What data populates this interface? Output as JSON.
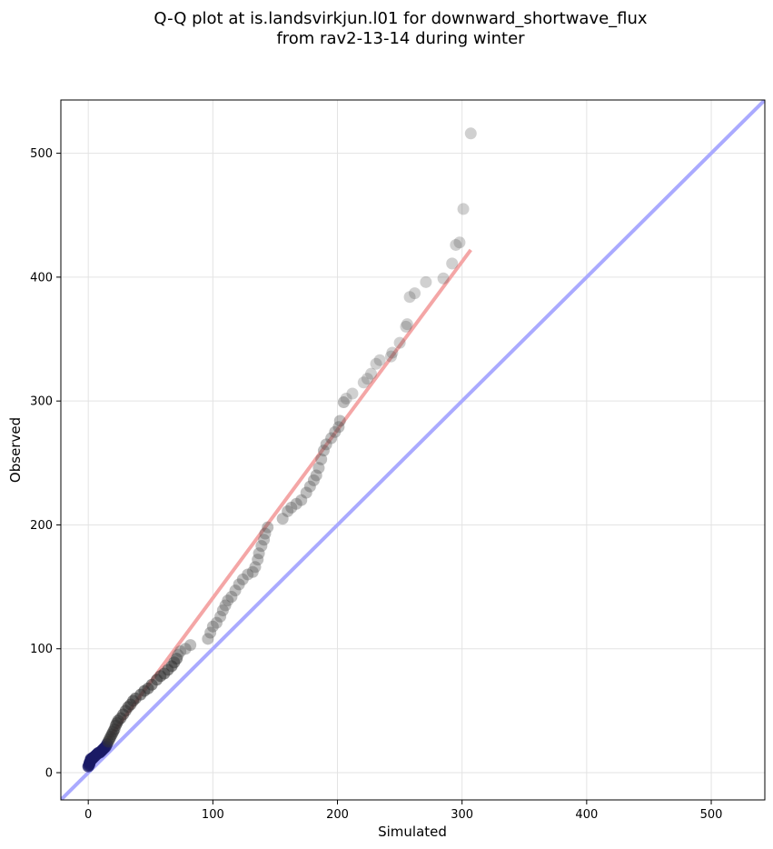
{
  "chart_data": {
    "type": "scatter",
    "title_lines": [
      "Q-Q plot at is.landsvirkjun.l01 for downward_shortwave_flux",
      "from rav2-13-14 during winter"
    ],
    "xlabel": "Simulated",
    "ylabel": "Observed",
    "xlim": [
      -22,
      543
    ],
    "ylim": [
      -22,
      543
    ],
    "xticks": [
      0,
      100,
      200,
      300,
      400,
      500
    ],
    "yticks": [
      0,
      100,
      200,
      300,
      400,
      500
    ],
    "grid": true,
    "reference_line": {
      "name": "1:1",
      "color": "#aaaaff",
      "from": [
        -22,
        -22
      ],
      "to": [
        543,
        543
      ]
    },
    "fit_line": {
      "color": "#f4a6a6",
      "from": [
        2,
        8
      ],
      "to": [
        307,
        422
      ]
    },
    "point_color": "#555555",
    "points": [
      [
        0,
        5
      ],
      [
        0.5,
        6
      ],
      [
        1,
        7
      ],
      [
        1,
        8
      ],
      [
        1.5,
        9
      ],
      [
        2,
        10
      ],
      [
        2,
        11
      ],
      [
        3,
        11
      ],
      [
        3.5,
        12
      ],
      [
        4,
        12
      ],
      [
        5,
        13
      ],
      [
        6,
        14
      ],
      [
        7,
        15
      ],
      [
        8,
        16
      ],
      [
        9,
        16
      ],
      [
        10,
        17
      ],
      [
        11,
        18
      ],
      [
        12,
        19
      ],
      [
        13,
        20
      ],
      [
        14,
        21
      ],
      [
        15,
        23
      ],
      [
        16,
        25
      ],
      [
        17,
        27
      ],
      [
        18,
        29
      ],
      [
        19,
        31
      ],
      [
        20,
        33
      ],
      [
        21,
        35
      ],
      [
        22,
        38
      ],
      [
        23,
        40
      ],
      [
        24,
        42
      ],
      [
        26,
        44
      ],
      [
        28,
        47
      ],
      [
        30,
        50
      ],
      [
        32,
        53
      ],
      [
        34,
        55
      ],
      [
        36,
        58
      ],
      [
        38,
        60
      ],
      [
        42,
        63
      ],
      [
        45,
        66
      ],
      [
        48,
        68
      ],
      [
        51,
        71
      ],
      [
        55,
        75
      ],
      [
        58,
        78
      ],
      [
        61,
        80
      ],
      [
        64,
        83
      ],
      [
        67,
        86
      ],
      [
        69,
        89
      ],
      [
        71,
        92
      ],
      [
        72,
        95
      ],
      [
        74,
        98
      ],
      [
        78,
        100
      ],
      [
        82,
        103
      ],
      [
        96,
        108
      ],
      [
        98,
        113
      ],
      [
        100,
        118
      ],
      [
        103,
        121
      ],
      [
        106,
        126
      ],
      [
        108,
        131
      ],
      [
        110,
        135
      ],
      [
        112,
        139
      ],
      [
        115,
        142
      ],
      [
        118,
        147
      ],
      [
        121,
        152
      ],
      [
        124,
        156
      ],
      [
        128,
        160
      ],
      [
        132,
        162
      ],
      [
        134,
        166
      ],
      [
        136,
        172
      ],
      [
        137,
        177
      ],
      [
        139,
        183
      ],
      [
        141,
        188
      ],
      [
        142,
        193
      ],
      [
        144,
        198
      ],
      [
        156,
        205
      ],
      [
        160,
        211
      ],
      [
        163,
        214
      ],
      [
        167,
        217
      ],
      [
        171,
        220
      ],
      [
        175,
        226
      ],
      [
        178,
        231
      ],
      [
        181,
        236
      ],
      [
        183,
        240
      ],
      [
        185,
        246
      ],
      [
        187,
        253
      ],
      [
        189,
        260
      ],
      [
        191,
        265
      ],
      [
        195,
        270
      ],
      [
        198,
        275
      ],
      [
        201,
        279
      ],
      [
        202,
        284
      ],
      [
        205,
        299
      ],
      [
        207,
        302
      ],
      [
        212,
        306
      ],
      [
        221,
        315
      ],
      [
        224,
        318
      ],
      [
        227,
        322
      ],
      [
        231,
        330
      ],
      [
        234,
        333
      ],
      [
        243,
        336
      ],
      [
        244,
        339
      ],
      [
        250,
        347
      ],
      [
        255,
        360
      ],
      [
        256,
        362
      ],
      [
        258,
        384
      ],
      [
        262,
        387
      ],
      [
        271,
        396
      ],
      [
        285,
        399
      ],
      [
        292,
        411
      ],
      [
        295,
        426
      ],
      [
        298,
        428
      ],
      [
        301,
        455
      ],
      [
        307,
        516
      ]
    ]
  }
}
